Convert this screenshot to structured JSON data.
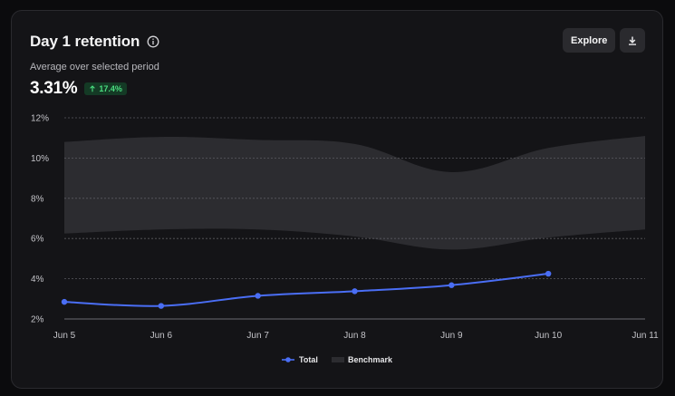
{
  "card": {
    "title": "Day 1 retention",
    "subtitle": "Average over selected period",
    "metric": "3.31%",
    "delta": "17.4%",
    "explore_label": "Explore",
    "info_icon": "info-circle-icon",
    "download_icon": "download-icon",
    "delta_icon": "arrow-up-icon"
  },
  "colors": {
    "total": "#4a6ef5",
    "benchmark": "#2c2c30",
    "grid": "#5a5a60",
    "badge_bg": "#143a25",
    "badge_text": "#4ade80"
  },
  "chart_data": {
    "type": "line",
    "title": "",
    "xlabel": "",
    "ylabel": "",
    "categories": [
      "Jun 5",
      "Jun 6",
      "Jun 7",
      "Jun 8",
      "Jun 9",
      "Jun 10",
      "Jun 11"
    ],
    "yticks": [
      "2%",
      "4%",
      "6%",
      "8%",
      "10%",
      "12%"
    ],
    "ylim": [
      2,
      12
    ],
    "grid": true,
    "legend_position": "bottom-center",
    "series": [
      {
        "name": "Total",
        "values": [
          2.85,
          2.65,
          3.15,
          3.38,
          3.68,
          4.25,
          null
        ]
      }
    ],
    "band": {
      "name": "Benchmark",
      "upper": [
        10.8,
        11.05,
        10.9,
        10.7,
        9.3,
        10.5,
        11.1
      ],
      "lower": [
        6.25,
        6.45,
        6.45,
        6.1,
        5.45,
        6.05,
        6.45
      ]
    }
  }
}
